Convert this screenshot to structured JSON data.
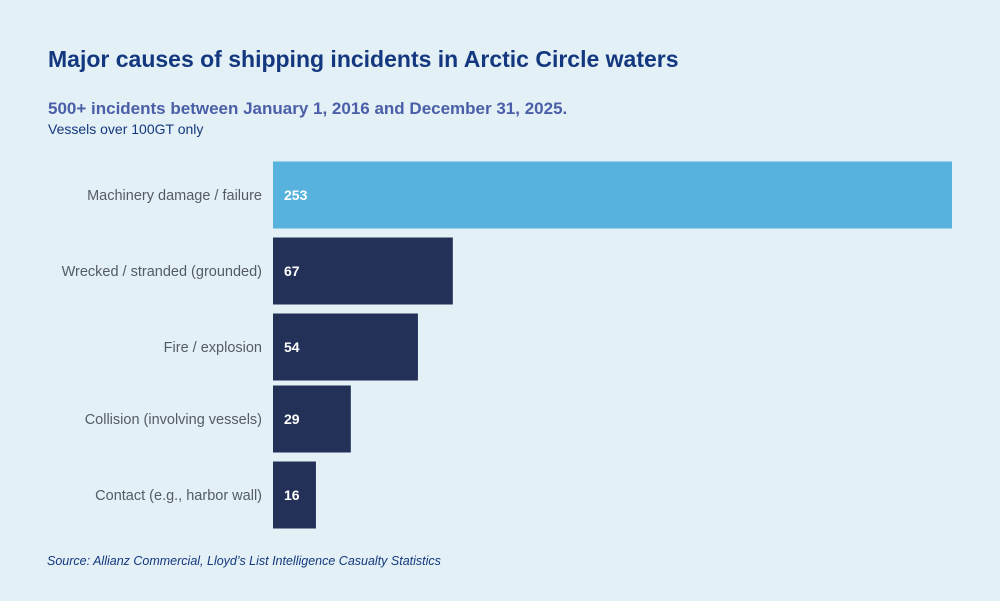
{
  "colors": {
    "background": "#e3f0f5",
    "highlight_bar": "#57b2de",
    "bar": "#233158",
    "title": "#14387f",
    "subtitle": "#4a5fa8",
    "category_label": "#555b66",
    "value_label": "#ffffff"
  },
  "header": {
    "title": "Major causes of shipping incidents in Arctic Circle waters",
    "subtitle": "500+ incidents between January 1, 2016 and December 31, 2025.",
    "note": "Vessels over 100GT only"
  },
  "footer": {
    "source": "Source: Allianz Commercial, Lloyd’s List Intelligence Casualty Statistics"
  },
  "chart_data": {
    "type": "bar",
    "orientation": "horizontal",
    "categories": [
      "Machinery damage / failure",
      "Wrecked / stranded (grounded)",
      "Fire / explosion",
      "Collision (involving vessels)",
      "Contact (e.g., harbor wall)"
    ],
    "values": [
      253,
      67,
      54,
      29,
      16
    ],
    "highlight_index": 0,
    "xlim": [
      0,
      253
    ],
    "grid": false,
    "legend": "none"
  }
}
